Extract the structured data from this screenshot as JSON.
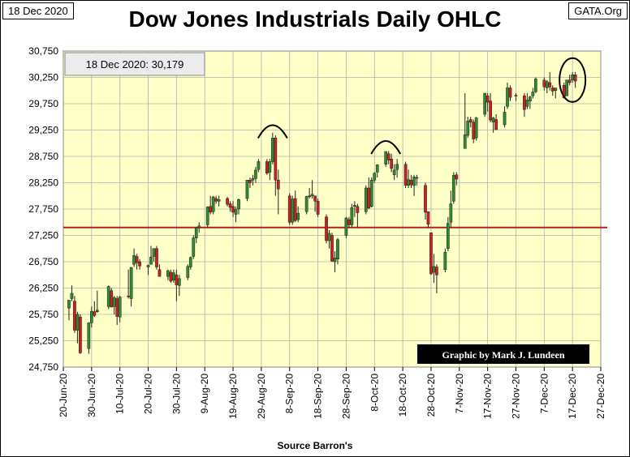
{
  "header": {
    "date_box": "18 Dec 2020",
    "site_box": "GATA.Org",
    "title": "Dow Jones Industrials Daily OHLC"
  },
  "chart_data": {
    "type": "ohlc-candlestick",
    "title": "Dow Jones Industrials Daily OHLC",
    "annotation_box": "18 Dec 2020:  30,179",
    "credit": "Graphic by Mark J. Lundeen",
    "source": "Source Barron's",
    "reference_line": {
      "value": 27400,
      "color": "#b22222"
    },
    "ylim": [
      24750,
      30750
    ],
    "y_ticks": [
      30750,
      30250,
      29750,
      29250,
      28750,
      28250,
      27750,
      27250,
      26750,
      26250,
      25750,
      25250,
      24750
    ],
    "y_tick_labels": [
      "30,750",
      "30,250",
      "29,750",
      "29,250",
      "28,750",
      "28,250",
      "27,750",
      "27,250",
      "26,750",
      "26,250",
      "25,750",
      "25,250",
      "24,750"
    ],
    "x_tick_labels": [
      "20-Jun-20",
      "30-Jun-20",
      "10-Jul-20",
      "20-Jul-20",
      "30-Jul-20",
      "9-Aug-20",
      "19-Aug-20",
      "29-Aug-20",
      "8-Sep-20",
      "18-Sep-20",
      "28-Sep-20",
      "8-Oct-20",
      "18-Oct-20",
      "28-Oct-20",
      "7-Nov-20",
      "17-Nov-20",
      "27-Nov-20",
      "7-Dec-20",
      "17-Dec-20",
      "27-Dec-20"
    ],
    "x_start": "2020-06-20",
    "x_end": "2020-12-27",
    "grid": true,
    "colors": {
      "plot_bg": "#ffffc8",
      "up": "#2e8b2e",
      "down": "#cc1f1f",
      "grid": "#b0b0b0"
    },
    "annotations": [
      {
        "type": "arc",
        "label": "top-1",
        "date": "2020-09-02",
        "value": 29250
      },
      {
        "type": "arc",
        "label": "top-2",
        "date": "2020-10-12",
        "value": 28950
      },
      {
        "type": "circle",
        "label": "latest",
        "date": "2020-12-17",
        "value": 30200
      }
    ],
    "series": [
      {
        "date": "2020-06-22",
        "o": 25870,
        "h": 26000,
        "l": 25640,
        "c": 26020
      },
      {
        "date": "2020-06-23",
        "o": 26050,
        "h": 26300,
        "l": 26000,
        "c": 26150
      },
      {
        "date": "2020-06-24",
        "o": 26000,
        "h": 26100,
        "l": 25400,
        "c": 25450
      },
      {
        "date": "2020-06-25",
        "o": 25450,
        "h": 25800,
        "l": 25200,
        "c": 25750
      },
      {
        "date": "2020-06-26",
        "o": 25700,
        "h": 25750,
        "l": 25000,
        "c": 25020
      },
      {
        "date": "2020-06-29",
        "o": 25100,
        "h": 25600,
        "l": 25000,
        "c": 25590
      },
      {
        "date": "2020-06-30",
        "o": 25590,
        "h": 25900,
        "l": 25500,
        "c": 25810
      },
      {
        "date": "2020-07-01",
        "o": 25800,
        "h": 26000,
        "l": 25700,
        "c": 25730
      },
      {
        "date": "2020-07-02",
        "o": 25800,
        "h": 26200,
        "l": 25780,
        "c": 25830
      },
      {
        "date": "2020-07-06",
        "o": 25900,
        "h": 26300,
        "l": 25850,
        "c": 26280
      },
      {
        "date": "2020-07-07",
        "o": 26200,
        "h": 26250,
        "l": 25880,
        "c": 25890
      },
      {
        "date": "2020-07-08",
        "o": 25900,
        "h": 26100,
        "l": 25750,
        "c": 26070
      },
      {
        "date": "2020-07-09",
        "o": 26050,
        "h": 26100,
        "l": 25550,
        "c": 25710
      },
      {
        "date": "2020-07-10",
        "o": 25700,
        "h": 26100,
        "l": 25600,
        "c": 26080
      },
      {
        "date": "2020-07-13",
        "o": 26100,
        "h": 26600,
        "l": 26050,
        "c": 26090
      },
      {
        "date": "2020-07-14",
        "o": 26050,
        "h": 26650,
        "l": 25900,
        "c": 26640
      },
      {
        "date": "2020-07-15",
        "o": 26700,
        "h": 27000,
        "l": 26650,
        "c": 26870
      },
      {
        "date": "2020-07-16",
        "o": 26850,
        "h": 26900,
        "l": 26600,
        "c": 26730
      },
      {
        "date": "2020-07-17",
        "o": 26750,
        "h": 26800,
        "l": 26600,
        "c": 26670
      },
      {
        "date": "2020-07-20",
        "o": 26650,
        "h": 26700,
        "l": 26500,
        "c": 26680
      },
      {
        "date": "2020-07-21",
        "o": 26700,
        "h": 27050,
        "l": 26700,
        "c": 26840
      },
      {
        "date": "2020-07-22",
        "o": 26850,
        "h": 27000,
        "l": 26750,
        "c": 27000
      },
      {
        "date": "2020-07-23",
        "o": 27000,
        "h": 27050,
        "l": 26600,
        "c": 26650
      },
      {
        "date": "2020-07-24",
        "o": 26600,
        "h": 26700,
        "l": 26500,
        "c": 26470
      },
      {
        "date": "2020-07-27",
        "o": 26470,
        "h": 26600,
        "l": 26400,
        "c": 26580
      },
      {
        "date": "2020-07-28",
        "o": 26550,
        "h": 26600,
        "l": 26350,
        "c": 26380
      },
      {
        "date": "2020-07-29",
        "o": 26400,
        "h": 26600,
        "l": 26350,
        "c": 26540
      },
      {
        "date": "2020-07-30",
        "o": 26500,
        "h": 26600,
        "l": 26000,
        "c": 26310
      },
      {
        "date": "2020-07-31",
        "o": 26300,
        "h": 26500,
        "l": 26100,
        "c": 26430
      },
      {
        "date": "2020-08-03",
        "o": 26450,
        "h": 26700,
        "l": 26400,
        "c": 26660
      },
      {
        "date": "2020-08-04",
        "o": 26650,
        "h": 26850,
        "l": 26600,
        "c": 26830
      },
      {
        "date": "2020-08-05",
        "o": 26850,
        "h": 27250,
        "l": 26800,
        "c": 27200
      },
      {
        "date": "2020-08-06",
        "o": 27200,
        "h": 27400,
        "l": 27100,
        "c": 27390
      },
      {
        "date": "2020-08-07",
        "o": 27400,
        "h": 27500,
        "l": 27300,
        "c": 27430
      },
      {
        "date": "2020-08-10",
        "o": 27450,
        "h": 27800,
        "l": 27400,
        "c": 27790
      },
      {
        "date": "2020-08-11",
        "o": 27800,
        "h": 28000,
        "l": 27650,
        "c": 27690
      },
      {
        "date": "2020-08-12",
        "o": 27700,
        "h": 28000,
        "l": 27650,
        "c": 27980
      },
      {
        "date": "2020-08-13",
        "o": 27950,
        "h": 28000,
        "l": 27850,
        "c": 27900
      },
      {
        "date": "2020-08-14",
        "o": 27900,
        "h": 28000,
        "l": 27800,
        "c": 27930
      },
      {
        "date": "2020-08-17",
        "o": 27950,
        "h": 27980,
        "l": 27800,
        "c": 27840
      },
      {
        "date": "2020-08-18",
        "o": 27850,
        "h": 27900,
        "l": 27700,
        "c": 27780
      },
      {
        "date": "2020-08-19",
        "o": 27800,
        "h": 27900,
        "l": 27600,
        "c": 27690
      },
      {
        "date": "2020-08-20",
        "o": 27650,
        "h": 27800,
        "l": 27500,
        "c": 27740
      },
      {
        "date": "2020-08-21",
        "o": 27750,
        "h": 27950,
        "l": 27650,
        "c": 27930
      },
      {
        "date": "2020-08-24",
        "o": 27950,
        "h": 28300,
        "l": 27900,
        "c": 28300
      },
      {
        "date": "2020-08-25",
        "o": 28300,
        "h": 28350,
        "l": 28150,
        "c": 28250
      },
      {
        "date": "2020-08-26",
        "o": 28300,
        "h": 28400,
        "l": 28200,
        "c": 28330
      },
      {
        "date": "2020-08-27",
        "o": 28330,
        "h": 28550,
        "l": 28250,
        "c": 28490
      },
      {
        "date": "2020-08-28",
        "o": 28500,
        "h": 28700,
        "l": 28450,
        "c": 28650
      },
      {
        "date": "2020-08-31",
        "o": 28650,
        "h": 28700,
        "l": 28400,
        "c": 28430
      },
      {
        "date": "2020-09-01",
        "o": 28450,
        "h": 28700,
        "l": 28300,
        "c": 28650
      },
      {
        "date": "2020-09-02",
        "o": 28650,
        "h": 29200,
        "l": 28600,
        "c": 29100
      },
      {
        "date": "2020-09-03",
        "o": 29100,
        "h": 29150,
        "l": 28000,
        "c": 28300
      },
      {
        "date": "2020-09-04",
        "o": 28300,
        "h": 28500,
        "l": 27650,
        "c": 28130
      },
      {
        "date": "2020-09-08",
        "o": 28000,
        "h": 28050,
        "l": 27450,
        "c": 27500
      },
      {
        "date": "2020-09-09",
        "o": 27500,
        "h": 28000,
        "l": 27450,
        "c": 27940
      },
      {
        "date": "2020-09-10",
        "o": 27950,
        "h": 28100,
        "l": 27500,
        "c": 27530
      },
      {
        "date": "2020-09-11",
        "o": 27550,
        "h": 27800,
        "l": 27500,
        "c": 27670
      },
      {
        "date": "2020-09-14",
        "o": 27700,
        "h": 28000,
        "l": 27650,
        "c": 27990
      },
      {
        "date": "2020-09-15",
        "o": 28000,
        "h": 28150,
        "l": 27950,
        "c": 27990
      },
      {
        "date": "2020-09-16",
        "o": 28000,
        "h": 28300,
        "l": 27950,
        "c": 28030
      },
      {
        "date": "2020-09-17",
        "o": 28000,
        "h": 28000,
        "l": 27700,
        "c": 27900
      },
      {
        "date": "2020-09-18",
        "o": 27900,
        "h": 27950,
        "l": 27600,
        "c": 27650
      },
      {
        "date": "2020-09-21",
        "o": 27600,
        "h": 27650,
        "l": 27100,
        "c": 27150
      },
      {
        "date": "2020-09-22",
        "o": 27150,
        "h": 27350,
        "l": 27000,
        "c": 27290
      },
      {
        "date": "2020-09-23",
        "o": 27250,
        "h": 27300,
        "l": 26750,
        "c": 26760
      },
      {
        "date": "2020-09-24",
        "o": 26750,
        "h": 26950,
        "l": 26550,
        "c": 26820
      },
      {
        "date": "2020-09-25",
        "o": 26800,
        "h": 27200,
        "l": 26700,
        "c": 27170
      },
      {
        "date": "2020-09-28",
        "o": 27250,
        "h": 27600,
        "l": 27200,
        "c": 27580
      },
      {
        "date": "2020-09-29",
        "o": 27550,
        "h": 27600,
        "l": 27400,
        "c": 27450
      },
      {
        "date": "2020-09-30",
        "o": 27450,
        "h": 27850,
        "l": 27400,
        "c": 27780
      },
      {
        "date": "2020-10-01",
        "o": 27800,
        "h": 27900,
        "l": 27600,
        "c": 27820
      },
      {
        "date": "2020-10-02",
        "o": 27800,
        "h": 27850,
        "l": 27400,
        "c": 27680
      },
      {
        "date": "2020-10-05",
        "o": 27700,
        "h": 28200,
        "l": 27650,
        "c": 28150
      },
      {
        "date": "2020-10-06",
        "o": 28150,
        "h": 28350,
        "l": 27750,
        "c": 27770
      },
      {
        "date": "2020-10-07",
        "o": 27800,
        "h": 28350,
        "l": 27780,
        "c": 28300
      },
      {
        "date": "2020-10-08",
        "o": 28300,
        "h": 28450,
        "l": 28250,
        "c": 28430
      },
      {
        "date": "2020-10-09",
        "o": 28450,
        "h": 28600,
        "l": 28350,
        "c": 28590
      },
      {
        "date": "2020-10-12",
        "o": 28600,
        "h": 28850,
        "l": 28550,
        "c": 28840
      },
      {
        "date": "2020-10-13",
        "o": 28800,
        "h": 28850,
        "l": 28600,
        "c": 28680
      },
      {
        "date": "2020-10-14",
        "o": 28700,
        "h": 28800,
        "l": 28450,
        "c": 28520
      },
      {
        "date": "2020-10-15",
        "o": 28400,
        "h": 28600,
        "l": 28300,
        "c": 28490
      },
      {
        "date": "2020-10-16",
        "o": 28500,
        "h": 28700,
        "l": 28350,
        "c": 28600
      },
      {
        "date": "2020-10-19",
        "o": 28600,
        "h": 28650,
        "l": 28150,
        "c": 28200
      },
      {
        "date": "2020-10-20",
        "o": 28200,
        "h": 28500,
        "l": 28150,
        "c": 28310
      },
      {
        "date": "2020-10-21",
        "o": 28300,
        "h": 28400,
        "l": 28150,
        "c": 28210
      },
      {
        "date": "2020-10-22",
        "o": 28200,
        "h": 28400,
        "l": 28000,
        "c": 28360
      },
      {
        "date": "2020-10-23",
        "o": 28350,
        "h": 28400,
        "l": 28200,
        "c": 28340
      },
      {
        "date": "2020-10-26",
        "o": 28200,
        "h": 28250,
        "l": 27550,
        "c": 27690
      },
      {
        "date": "2020-10-27",
        "o": 27700,
        "h": 27700,
        "l": 27400,
        "c": 27460
      },
      {
        "date": "2020-10-28",
        "o": 27300,
        "h": 27300,
        "l": 26500,
        "c": 26520
      },
      {
        "date": "2020-10-29",
        "o": 26550,
        "h": 26900,
        "l": 26350,
        "c": 26660
      },
      {
        "date": "2020-10-30",
        "o": 26650,
        "h": 26700,
        "l": 26150,
        "c": 26500
      },
      {
        "date": "2020-11-02",
        "o": 26600,
        "h": 27000,
        "l": 26550,
        "c": 26930
      },
      {
        "date": "2020-11-03",
        "o": 27000,
        "h": 27600,
        "l": 26950,
        "c": 27480
      },
      {
        "date": "2020-11-04",
        "o": 27500,
        "h": 28100,
        "l": 27400,
        "c": 27850
      },
      {
        "date": "2020-11-05",
        "o": 27900,
        "h": 28450,
        "l": 27850,
        "c": 28390
      },
      {
        "date": "2020-11-06",
        "o": 28400,
        "h": 28450,
        "l": 28200,
        "c": 28320
      },
      {
        "date": "2020-11-09",
        "o": 28900,
        "h": 29950,
        "l": 28900,
        "c": 29160
      },
      {
        "date": "2020-11-10",
        "o": 29150,
        "h": 29500,
        "l": 29100,
        "c": 29420
      },
      {
        "date": "2020-11-11",
        "o": 29450,
        "h": 29500,
        "l": 29300,
        "c": 29400
      },
      {
        "date": "2020-11-12",
        "o": 29400,
        "h": 29450,
        "l": 29000,
        "c": 29080
      },
      {
        "date": "2020-11-13",
        "o": 29100,
        "h": 29500,
        "l": 29050,
        "c": 29480
      },
      {
        "date": "2020-11-16",
        "o": 29550,
        "h": 29950,
        "l": 29500,
        "c": 29950
      },
      {
        "date": "2020-11-17",
        "o": 29900,
        "h": 29950,
        "l": 29600,
        "c": 29780
      },
      {
        "date": "2020-11-18",
        "o": 29800,
        "h": 29950,
        "l": 29400,
        "c": 29440
      },
      {
        "date": "2020-11-19",
        "o": 29400,
        "h": 29500,
        "l": 29200,
        "c": 29480
      },
      {
        "date": "2020-11-20",
        "o": 29450,
        "h": 29550,
        "l": 29250,
        "c": 29260
      },
      {
        "date": "2020-11-23",
        "o": 29350,
        "h": 29700,
        "l": 29300,
        "c": 29590
      },
      {
        "date": "2020-11-24",
        "o": 29700,
        "h": 30150,
        "l": 29650,
        "c": 30050
      },
      {
        "date": "2020-11-25",
        "o": 30050,
        "h": 30100,
        "l": 29800,
        "c": 29870
      },
      {
        "date": "2020-11-27",
        "o": 29900,
        "h": 29950,
        "l": 29800,
        "c": 29910
      },
      {
        "date": "2020-11-30",
        "o": 29900,
        "h": 29950,
        "l": 29500,
        "c": 29640
      },
      {
        "date": "2020-12-01",
        "o": 29700,
        "h": 29950,
        "l": 29650,
        "c": 29820
      },
      {
        "date": "2020-12-02",
        "o": 29800,
        "h": 29900,
        "l": 29650,
        "c": 29880
      },
      {
        "date": "2020-12-03",
        "o": 29900,
        "h": 30050,
        "l": 29850,
        "c": 29970
      },
      {
        "date": "2020-12-04",
        "o": 29980,
        "h": 30250,
        "l": 29950,
        "c": 30220
      },
      {
        "date": "2020-12-07",
        "o": 30200,
        "h": 30250,
        "l": 30000,
        "c": 30070
      },
      {
        "date": "2020-12-08",
        "o": 30050,
        "h": 30200,
        "l": 29950,
        "c": 30170
      },
      {
        "date": "2020-12-09",
        "o": 30150,
        "h": 30350,
        "l": 30000,
        "c": 30070
      },
      {
        "date": "2020-12-10",
        "o": 30050,
        "h": 30100,
        "l": 29900,
        "c": 29990
      },
      {
        "date": "2020-12-11",
        "o": 30000,
        "h": 30050,
        "l": 29850,
        "c": 30050
      },
      {
        "date": "2020-12-14",
        "o": 30100,
        "h": 30150,
        "l": 29850,
        "c": 29860
      },
      {
        "date": "2020-12-15",
        "o": 29900,
        "h": 30200,
        "l": 29900,
        "c": 30200
      },
      {
        "date": "2020-12-16",
        "o": 30200,
        "h": 30300,
        "l": 30100,
        "c": 30150
      },
      {
        "date": "2020-12-17",
        "o": 30200,
        "h": 30350,
        "l": 30150,
        "c": 30300
      },
      {
        "date": "2020-12-18",
        "o": 30300,
        "h": 30350,
        "l": 30050,
        "c": 30179
      }
    ]
  }
}
